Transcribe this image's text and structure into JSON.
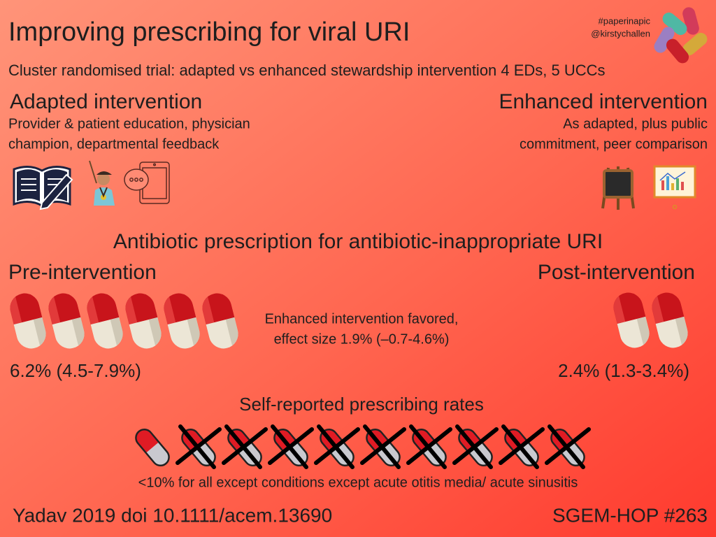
{
  "header": {
    "title": "Improving prescribing for viral URI",
    "subtitle": "Cluster randomised trial: adapted vs enhanced stewardship intervention 4 EDs, 5 UCCs",
    "hashtag": "#paperinapic",
    "handle": "@kirstychallen"
  },
  "adapted": {
    "heading": "Adapted intervention",
    "lines": [
      "Provider & patient education, physician",
      "champion, departmental feedback"
    ]
  },
  "enhanced": {
    "heading": "Enhanced intervention",
    "lines": [
      "As adapted, plus public",
      "commitment, peer comparison"
    ]
  },
  "outcome": {
    "heading": "Antibiotic prescription for antibiotic-inappropriate URI",
    "pre": {
      "label": "Pre-intervention",
      "value": "6.2% (4.5-7.9%)"
    },
    "post": {
      "label": "Post-intervention",
      "value": "2.4% (1.3-3.4%)"
    },
    "effect": [
      "Enhanced intervention favored,",
      "effect size 1.9% (–0.7-4.6%)"
    ]
  },
  "self_report": {
    "heading": "Self-reported prescribing rates",
    "note": "<10% for all except conditions except acute otitis media/ acute sinusitis"
  },
  "footer": {
    "citation": "Yadav 2019 doi 10.1111/acem.13690",
    "tag": "SGEM-HOP #263"
  }
}
